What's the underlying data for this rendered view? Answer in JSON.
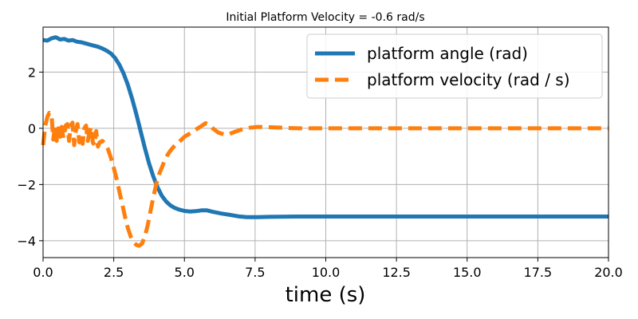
{
  "chart_data": {
    "type": "line",
    "title": "Initial Platform Velocity = -0.6 rad/s",
    "xlabel": "time (s)",
    "ylabel": "",
    "xlim": [
      0,
      20
    ],
    "ylim": [
      -4.6,
      3.6
    ],
    "xticks": [
      0,
      2.5,
      5,
      7.5,
      10,
      12.5,
      15,
      17.5,
      20
    ],
    "xtick_labels": [
      "0.0",
      "2.5",
      "5.0",
      "7.5",
      "10.0",
      "12.5",
      "15.0",
      "17.5",
      "20.0"
    ],
    "yticks": [
      -4,
      -2,
      0,
      2
    ],
    "ytick_labels": [
      "−4",
      "−2",
      "0",
      "2"
    ],
    "grid": true,
    "legend_position": "top-right",
    "series": [
      {
        "name": "platform angle (rad)",
        "color": "#1f77b4",
        "style": "solid",
        "x": [
          0,
          0.15,
          0.3,
          0.45,
          0.6,
          0.75,
          0.9,
          1.05,
          1.2,
          1.35,
          1.5,
          1.65,
          1.8,
          1.95,
          2.1,
          2.25,
          2.4,
          2.55,
          2.7,
          2.85,
          3.0,
          3.15,
          3.3,
          3.45,
          3.6,
          3.75,
          3.9,
          4.05,
          4.2,
          4.35,
          4.5,
          4.65,
          4.8,
          5.0,
          5.2,
          5.4,
          5.6,
          5.8,
          6.0,
          6.3,
          6.6,
          6.9,
          7.2,
          7.6,
          8.0,
          9.0,
          10.0,
          12.0,
          15.0,
          18.0,
          20.0
        ],
        "y": [
          3.14,
          3.12,
          3.2,
          3.24,
          3.16,
          3.18,
          3.12,
          3.14,
          3.08,
          3.06,
          3.02,
          2.98,
          2.94,
          2.9,
          2.84,
          2.76,
          2.66,
          2.5,
          2.26,
          1.95,
          1.55,
          1.05,
          0.5,
          -0.1,
          -0.7,
          -1.25,
          -1.72,
          -2.1,
          -2.4,
          -2.6,
          -2.74,
          -2.83,
          -2.89,
          -2.94,
          -2.96,
          -2.95,
          -2.92,
          -2.92,
          -2.97,
          -3.03,
          -3.08,
          -3.13,
          -3.16,
          -3.16,
          -3.15,
          -3.14,
          -3.14,
          -3.14,
          -3.14,
          -3.14,
          -3.14
        ]
      },
      {
        "name": "platform velocity (rad / s)",
        "color": "#ff7f0e",
        "style": "dashed",
        "x": [
          0,
          0.08,
          0.15,
          0.22,
          0.3,
          0.36,
          0.42,
          0.48,
          0.54,
          0.6,
          0.66,
          0.72,
          0.8,
          0.86,
          0.92,
          0.98,
          1.04,
          1.1,
          1.16,
          1.22,
          1.28,
          1.34,
          1.4,
          1.46,
          1.52,
          1.58,
          1.64,
          1.7,
          1.76,
          1.82,
          1.88,
          1.94,
          2.0,
          2.1,
          2.2,
          2.3,
          2.4,
          2.5,
          2.6,
          2.7,
          2.8,
          2.9,
          3.0,
          3.1,
          3.2,
          3.3,
          3.4,
          3.5,
          3.6,
          3.7,
          3.8,
          3.9,
          4.0,
          4.1,
          4.2,
          4.3,
          4.4,
          4.5,
          4.6,
          4.7,
          4.85,
          5.0,
          5.2,
          5.4,
          5.6,
          5.75,
          5.9,
          6.0,
          6.2,
          6.4,
          6.6,
          6.8,
          7.0,
          7.3,
          7.6,
          8.0,
          8.5,
          9.0,
          10.0,
          12.0,
          15.0,
          18.0,
          20.0
        ],
        "y": [
          -0.6,
          0.1,
          0.4,
          0.55,
          0.5,
          -0.4,
          0.1,
          -0.45,
          0.0,
          -0.3,
          0.05,
          -0.35,
          0.1,
          0.15,
          -0.45,
          0.1,
          0.2,
          -0.6,
          -0.1,
          0.15,
          -0.5,
          -0.2,
          -0.55,
          0.0,
          0.1,
          -0.45,
          -0.15,
          0.05,
          -0.5,
          -0.6,
          -0.1,
          -0.65,
          -0.5,
          -0.45,
          -0.55,
          -0.75,
          -1.05,
          -1.4,
          -1.8,
          -2.25,
          -2.7,
          -3.15,
          -3.55,
          -3.85,
          -4.05,
          -4.15,
          -4.18,
          -4.1,
          -3.85,
          -3.45,
          -2.95,
          -2.45,
          -2.0,
          -1.65,
          -1.4,
          -1.15,
          -0.95,
          -0.8,
          -0.68,
          -0.58,
          -0.45,
          -0.3,
          -0.18,
          -0.05,
          0.08,
          0.18,
          0.12,
          0.0,
          -0.15,
          -0.22,
          -0.2,
          -0.12,
          -0.05,
          0.02,
          0.05,
          0.04,
          0.02,
          0.0,
          0.0,
          0.0,
          0.0,
          0.0,
          0.0
        ]
      }
    ]
  }
}
